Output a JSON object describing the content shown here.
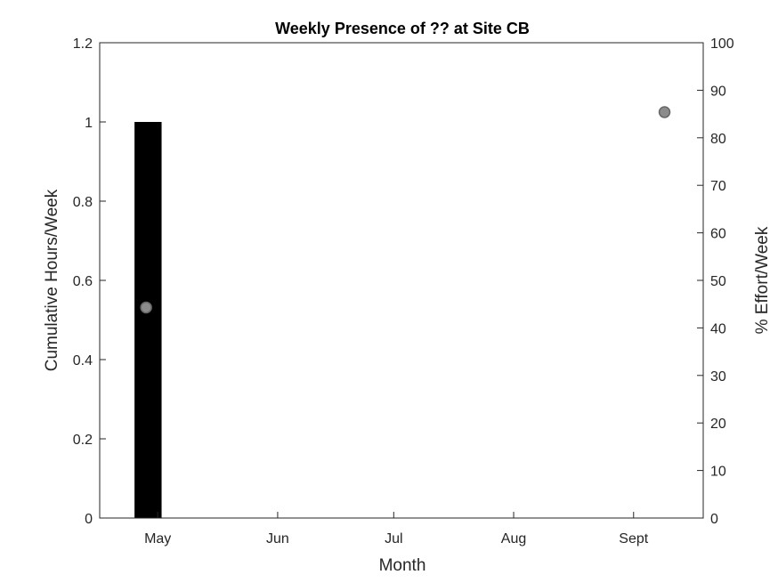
{
  "chart_data": {
    "type": "bar",
    "title": "Weekly Presence of ?? at Site CB",
    "xlabel": "Month",
    "ylabel": "Cumulative Hours/Week",
    "y2label": "% Effort/Week",
    "x_ticks": [
      "May",
      "Jun",
      "Jul",
      "Aug",
      "Sept"
    ],
    "ylim": [
      0,
      1.2
    ],
    "y_ticks": [
      "0",
      "0.2",
      "0.4",
      "0.6",
      "0.8",
      "1",
      "1.2"
    ],
    "y2lim": [
      0,
      100
    ],
    "y2_ticks": [
      "0",
      "10",
      "20",
      "30",
      "40",
      "50",
      "60",
      "70",
      "80",
      "90",
      "100"
    ],
    "bar_color": "#000000",
    "marker_color": "#8c8c8c",
    "bars": [
      {
        "week_start": "2017-04-25",
        "hours": 1.0
      }
    ],
    "effort_points": [
      {
        "date": "2017-04-28",
        "percent": 44.3
      },
      {
        "date": "2017-09-09",
        "percent": 85.4
      }
    ],
    "grid": false,
    "legend": false
  }
}
